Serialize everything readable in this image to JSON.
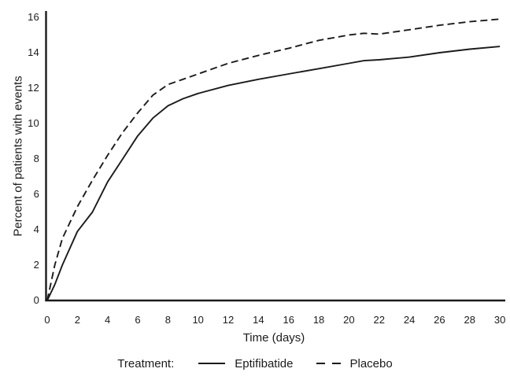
{
  "chart_data": {
    "type": "line",
    "title": "",
    "xlabel": "Time (days)",
    "ylabel": "Percent of patients with events",
    "xlim": [
      0,
      30
    ],
    "ylim": [
      0,
      16
    ],
    "x_ticks": [
      0,
      2,
      4,
      6,
      8,
      10,
      12,
      14,
      16,
      18,
      20,
      22,
      24,
      26,
      28,
      30
    ],
    "y_ticks": [
      0,
      2,
      4,
      6,
      8,
      10,
      12,
      14,
      16
    ],
    "grid": false,
    "line_color": "#1b1b1b",
    "legend": {
      "title": "Treatment:",
      "position": "bottom"
    },
    "series": [
      {
        "name": "Eptifibatide",
        "line_style": "solid",
        "color": "#1b1b1b",
        "x": [
          0,
          0.5,
          1,
          2,
          3,
          4,
          5,
          6,
          7,
          8,
          9,
          10,
          12,
          14,
          16,
          18,
          20,
          21,
          22,
          24,
          26,
          28,
          30
        ],
        "y": [
          0,
          0.9,
          2.0,
          3.9,
          5.0,
          6.7,
          8.0,
          9.3,
          10.3,
          11.0,
          11.4,
          11.7,
          12.15,
          12.5,
          12.8,
          13.1,
          13.4,
          13.55,
          13.6,
          13.75,
          14.0,
          14.2,
          14.35
        ]
      },
      {
        "name": "Placebo",
        "line_style": "dashed",
        "color": "#1b1b1b",
        "x": [
          0,
          0.5,
          1,
          2,
          3,
          4,
          5,
          6,
          7,
          8,
          9,
          10,
          12,
          14,
          16,
          18,
          20,
          21,
          22,
          24,
          26,
          28,
          30
        ],
        "y": [
          0,
          2.0,
          3.5,
          5.3,
          6.8,
          8.2,
          9.5,
          10.6,
          11.6,
          12.2,
          12.5,
          12.8,
          13.4,
          13.85,
          14.25,
          14.7,
          15.0,
          15.1,
          15.05,
          15.3,
          15.55,
          15.75,
          15.9
        ]
      }
    ]
  }
}
